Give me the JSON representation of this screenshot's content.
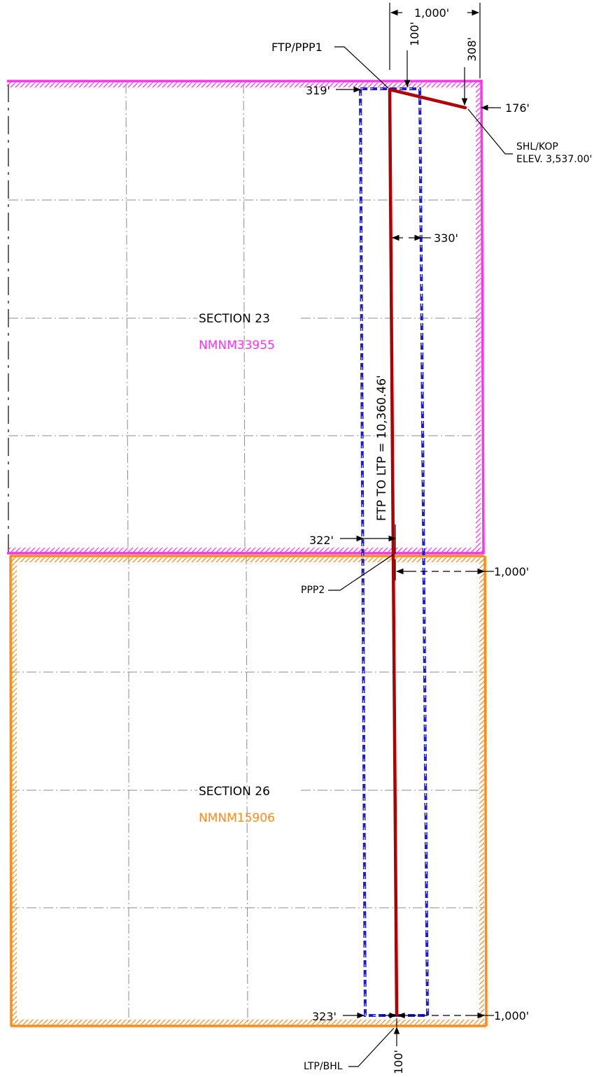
{
  "colors": {
    "section23_boundary": "#ff33ee",
    "section26_boundary": "#ff8c1a",
    "setback_rectangle": "#1b1bd6",
    "wellbore": "#b00000",
    "grid": "#8c8c8c",
    "text": "#000000"
  },
  "sections": [
    {
      "label": "SECTION 23",
      "lease": "NMNM33955",
      "lease_color": "#ff33ee"
    },
    {
      "label": "SECTION 26",
      "lease": "NMNM15906",
      "lease_color": "#ff8c1a"
    }
  ],
  "points": {
    "ftp": "FTP/PPP1",
    "shl": "SHL/KOP",
    "elevation": "ELEV. 3,537.00'",
    "ppp2": "PPP2",
    "ltp": "LTP/BHL"
  },
  "lateral_label": "FTP TO LTP = 10,360.46'",
  "dimensions": {
    "top_span": "1,000'",
    "top_offset": "100'",
    "shl_from_north": "308'",
    "ftp_from_west_setback": "319'",
    "shl_from_east": "176'",
    "setback_width": "330'",
    "ppp2_from_west_setback": "322'",
    "ppp2_from_east": "1,000'",
    "ltp_from_west_setback": "323'",
    "ltp_from_east": "1,000'",
    "ltp_from_south": "100'"
  }
}
